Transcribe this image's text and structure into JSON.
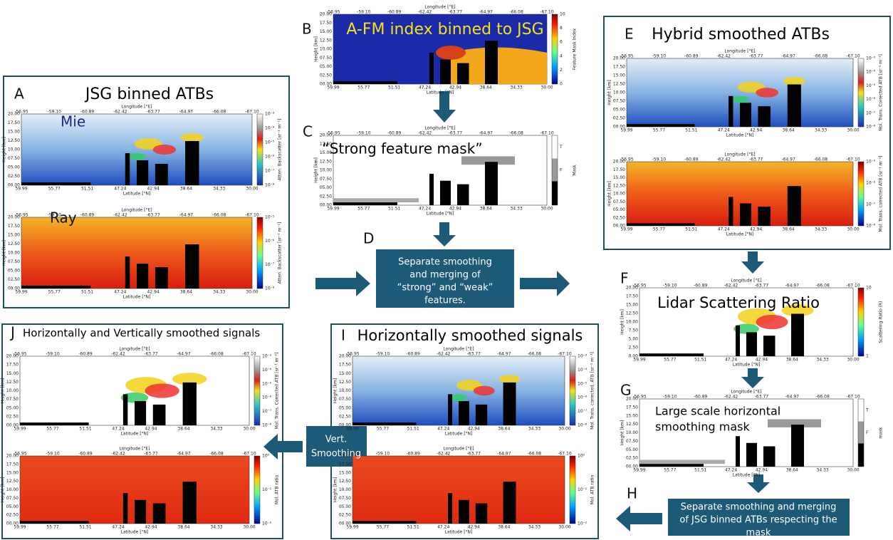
{
  "axes": {
    "longitude_label": "Longitude [°E]",
    "latitude_label": "Latitude [°N]",
    "height_label": "Height [km]",
    "lon_ticks": [
      "-56.95",
      "-59.10",
      "-60.89",
      "-62.42",
      "-63.77",
      "-64.97",
      "-66.08",
      "-67.10"
    ],
    "lat_ticks": [
      "59.99",
      "55.77",
      "51.51",
      "47.24",
      "42.94",
      "38.64",
      "34.33",
      "30.00"
    ],
    "height_ticks": [
      "00.00",
      "02.50",
      "05.00",
      "07.50",
      "10.00",
      "12.50",
      "15.00",
      "17.50",
      "20.00"
    ]
  },
  "panels": {
    "A": {
      "letter": "A",
      "title": "JSG binned ATBs",
      "plots": [
        {
          "label": "Mie",
          "colorbar_label": "Atten. Backscatter [sr⁻¹ m⁻¹]",
          "colorbar_ticks": [
            "10⁻³",
            "10⁻⁴",
            "10⁻⁵",
            "10⁻⁶",
            "10⁻⁷",
            "10⁻⁸"
          ]
        },
        {
          "label": "Ray",
          "colorbar_label": "Atten. Backscatter [sr⁻¹ m⁻¹]",
          "colorbar_ticks": [
            "10⁻⁵",
            "10⁻⁶",
            "10⁻⁷",
            "10⁻⁸"
          ]
        }
      ]
    },
    "B": {
      "letter": "B",
      "title": "A-FM index binned to JSG",
      "plots": [
        {
          "colorbar_label": "Feature Mask Index",
          "colorbar_ticks": [
            "10",
            "8",
            "6",
            "4",
            "2",
            "0"
          ]
        }
      ]
    },
    "C": {
      "letter": "C",
      "title": "“Strong feature mask”",
      "plots": [
        {
          "colorbar_label": "Mask",
          "colorbar_ticks": [
            "T",
            "F"
          ]
        }
      ]
    },
    "D": {
      "letter": "D",
      "text_lines": [
        "Separate smoothing",
        "and merging  of",
        "“strong” and “weak”",
        "features."
      ]
    },
    "E": {
      "letter": "E",
      "title": "Hybrid smoothed ATBs",
      "plots": [
        {
          "colorbar_label": "Mol. Trans. Corrected ATB [sr⁻¹ m⁻¹]",
          "colorbar_ticks": [
            "10⁻³",
            "10⁻⁴",
            "10⁻⁵",
            "10⁻⁶",
            "10⁻⁷",
            "10⁻⁸"
          ]
        },
        {
          "colorbar_label": "Mol. Trans. corrected ATB [sr⁻¹ m⁻¹]",
          "colorbar_ticks": [
            "10⁻⁵",
            "10⁻⁶",
            "10⁻⁷",
            "10⁻⁸"
          ]
        }
      ]
    },
    "F": {
      "letter": "F",
      "title": "Lidar Scattering Ratio",
      "plots": [
        {
          "colorbar_label": "Scattering Ratio (R)",
          "colorbar_ticks": [
            "10",
            "1"
          ],
          "height_ticks": [
            "0.00",
            "2.50",
            "5.00",
            "7.50",
            "10.00",
            "12.50",
            "15.00",
            "17.50",
            "20.00"
          ]
        }
      ]
    },
    "G": {
      "letter": "G",
      "title_lines": [
        "Large scale horizontal",
        "smoothing mask"
      ],
      "plots": [
        {
          "colorbar_label": "mask",
          "colorbar_ticks": [
            "T",
            "F"
          ]
        }
      ]
    },
    "H": {
      "letter": "H",
      "text_lines": [
        "Separate smoothing and merging",
        "of JSG binned ATBs respecting the",
        "mask"
      ]
    },
    "I": {
      "letter": "I",
      "title": "Horizontally smoothed signals",
      "plots": [
        {
          "colorbar_label": "Mol. Trans. corrected. ATB [sr⁻¹ m⁻¹]",
          "colorbar_ticks": [
            "10⁻³",
            "10⁻⁴",
            "10⁻⁵",
            "10⁻⁶",
            "10⁻⁷",
            "10⁻⁸"
          ]
        },
        {
          "colorbar_label": "Mol. ATB ratio",
          "colorbar_ticks": [
            "10⁰",
            "10⁻¹",
            "10⁻²"
          ]
        }
      ]
    },
    "J": {
      "letter": "J",
      "title": "Horizontally and Vertically smoothed signals",
      "plots": [
        {
          "colorbar_label": "Mol. Trans. Corrected ATB [sr⁻¹ m⁻¹]",
          "colorbar_ticks": [
            "10⁻³",
            "10⁻⁴",
            "10⁻⁵",
            "10⁻⁶",
            "10⁻⁷",
            "10⁻⁸"
          ]
        },
        {
          "colorbar_label": "Mol. ATB ratio",
          "colorbar_ticks": [
            "10⁰",
            "10⁻¹",
            "10⁻²"
          ]
        }
      ]
    },
    "vert_smoothing": {
      "text_lines": [
        "Vert.",
        "Smoothing"
      ]
    }
  }
}
